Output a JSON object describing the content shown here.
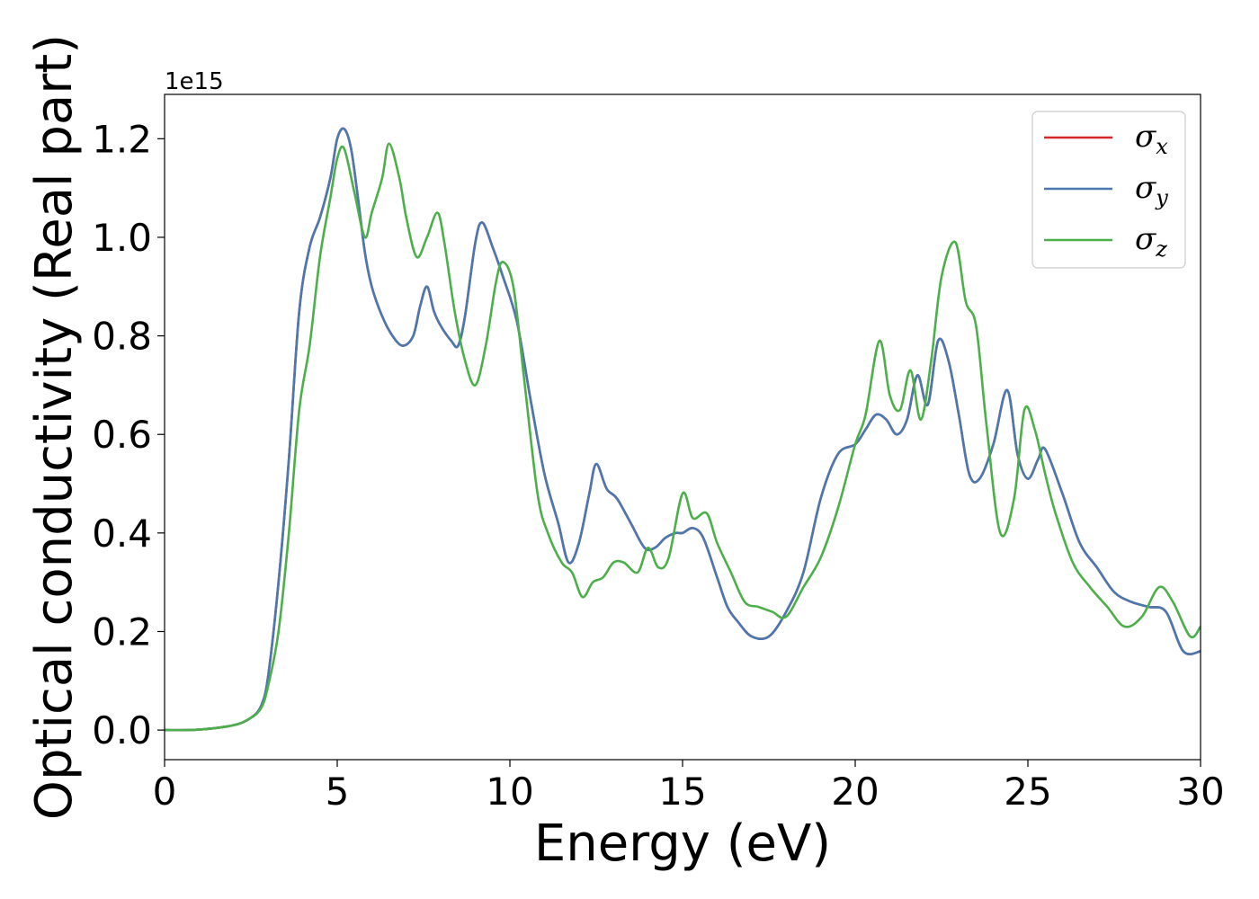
{
  "chart_data": {
    "type": "line",
    "xlabel": "Energy (eV)",
    "ylabel": "Optical conductivity (Real part)",
    "y_offset_label": "1e15",
    "xlim": [
      0,
      30
    ],
    "ylim": [
      -0.06,
      1.29
    ],
    "x_ticks": [
      0,
      5,
      10,
      15,
      20,
      25,
      30
    ],
    "x_tick_labels": [
      "0",
      "5",
      "10",
      "15",
      "20",
      "25",
      "30"
    ],
    "y_ticks": [
      0.0,
      0.2,
      0.4,
      0.6,
      0.8,
      1.0,
      1.2
    ],
    "y_tick_labels": [
      "0.0",
      "0.2",
      "0.4",
      "0.6",
      "0.8",
      "1.0",
      "1.2"
    ],
    "grid": false,
    "legend_position": "top-right",
    "series": [
      {
        "name": "σx",
        "symbol": "σ",
        "subscript": "x",
        "color": "#d62728",
        "x": [
          0,
          1,
          2,
          2.5,
          2.8,
          3.0,
          3.3,
          3.6,
          3.9,
          4.2,
          4.5,
          4.8,
          5.0,
          5.2,
          5.4,
          5.6,
          5.8,
          6.0,
          6.3,
          6.6,
          6.9,
          7.2,
          7.4,
          7.6,
          7.8,
          8.0,
          8.3,
          8.5,
          8.7,
          9.0,
          9.2,
          9.5,
          9.8,
          10.2,
          10.6,
          11.0,
          11.4,
          11.7,
          12.0,
          12.3,
          12.5,
          12.8,
          13.1,
          13.5,
          13.9,
          14.2,
          14.5,
          14.8,
          15.0,
          15.3,
          15.6,
          16.0,
          16.3,
          16.6,
          17.0,
          17.5,
          18.0,
          18.5,
          19.0,
          19.5,
          20.0,
          20.3,
          20.6,
          20.9,
          21.2,
          21.5,
          21.8,
          22.1,
          22.4,
          22.7,
          23.0,
          23.3,
          23.6,
          24.0,
          24.4,
          24.7,
          25.0,
          25.3,
          25.5,
          26.0,
          26.5,
          27.0,
          27.5,
          28.0,
          28.5,
          29.0,
          29.5,
          30.0
        ],
        "values": [
          0,
          0.001,
          0.01,
          0.025,
          0.05,
          0.11,
          0.3,
          0.55,
          0.85,
          0.98,
          1.04,
          1.12,
          1.2,
          1.22,
          1.18,
          1.08,
          0.97,
          0.9,
          0.84,
          0.8,
          0.78,
          0.8,
          0.86,
          0.9,
          0.85,
          0.82,
          0.79,
          0.78,
          0.84,
          0.99,
          1.03,
          0.98,
          0.92,
          0.83,
          0.67,
          0.52,
          0.42,
          0.34,
          0.38,
          0.48,
          0.54,
          0.49,
          0.47,
          0.42,
          0.37,
          0.37,
          0.39,
          0.4,
          0.4,
          0.41,
          0.39,
          0.31,
          0.25,
          0.22,
          0.19,
          0.19,
          0.24,
          0.32,
          0.47,
          0.56,
          0.58,
          0.61,
          0.64,
          0.63,
          0.6,
          0.63,
          0.72,
          0.66,
          0.79,
          0.75,
          0.64,
          0.52,
          0.51,
          0.58,
          0.69,
          0.56,
          0.51,
          0.55,
          0.57,
          0.48,
          0.38,
          0.33,
          0.28,
          0.26,
          0.25,
          0.24,
          0.16,
          0.16
        ]
      },
      {
        "name": "σy",
        "symbol": "σ",
        "subscript": "y",
        "color": "#4a78b0",
        "x": [
          0,
          1,
          2,
          2.5,
          2.8,
          3.0,
          3.3,
          3.6,
          3.9,
          4.2,
          4.5,
          4.8,
          5.0,
          5.2,
          5.4,
          5.6,
          5.8,
          6.0,
          6.3,
          6.6,
          6.9,
          7.2,
          7.4,
          7.6,
          7.8,
          8.0,
          8.3,
          8.5,
          8.7,
          9.0,
          9.2,
          9.5,
          9.8,
          10.2,
          10.6,
          11.0,
          11.4,
          11.7,
          12.0,
          12.3,
          12.5,
          12.8,
          13.1,
          13.5,
          13.9,
          14.2,
          14.5,
          14.8,
          15.0,
          15.3,
          15.6,
          16.0,
          16.3,
          16.6,
          17.0,
          17.5,
          18.0,
          18.5,
          19.0,
          19.5,
          20.0,
          20.3,
          20.6,
          20.9,
          21.2,
          21.5,
          21.8,
          22.1,
          22.4,
          22.7,
          23.0,
          23.3,
          23.6,
          24.0,
          24.4,
          24.7,
          25.0,
          25.3,
          25.5,
          26.0,
          26.5,
          27.0,
          27.5,
          28.0,
          28.5,
          29.0,
          29.5,
          30.0
        ],
        "values": [
          0,
          0.001,
          0.01,
          0.025,
          0.05,
          0.11,
          0.3,
          0.55,
          0.85,
          0.98,
          1.04,
          1.12,
          1.2,
          1.22,
          1.18,
          1.08,
          0.97,
          0.9,
          0.84,
          0.8,
          0.78,
          0.8,
          0.86,
          0.9,
          0.85,
          0.82,
          0.79,
          0.78,
          0.84,
          0.99,
          1.03,
          0.98,
          0.92,
          0.83,
          0.67,
          0.52,
          0.42,
          0.34,
          0.38,
          0.48,
          0.54,
          0.49,
          0.47,
          0.42,
          0.37,
          0.37,
          0.39,
          0.4,
          0.4,
          0.41,
          0.39,
          0.31,
          0.25,
          0.22,
          0.19,
          0.19,
          0.24,
          0.32,
          0.47,
          0.56,
          0.58,
          0.61,
          0.64,
          0.63,
          0.6,
          0.63,
          0.72,
          0.66,
          0.79,
          0.75,
          0.64,
          0.52,
          0.51,
          0.58,
          0.69,
          0.56,
          0.51,
          0.55,
          0.57,
          0.48,
          0.38,
          0.33,
          0.28,
          0.26,
          0.25,
          0.24,
          0.16,
          0.16
        ]
      },
      {
        "name": "σz",
        "symbol": "σ",
        "subscript": "z",
        "color": "#4daf4a",
        "x": [
          0,
          1,
          2,
          2.5,
          2.8,
          3.0,
          3.3,
          3.6,
          3.9,
          4.2,
          4.5,
          4.8,
          5.0,
          5.2,
          5.5,
          5.8,
          6.0,
          6.3,
          6.5,
          6.8,
          7.0,
          7.3,
          7.6,
          7.9,
          8.1,
          8.4,
          8.7,
          9.0,
          9.3,
          9.6,
          9.8,
          10.1,
          10.4,
          10.8,
          11.1,
          11.5,
          11.8,
          12.1,
          12.4,
          12.7,
          13.0,
          13.3,
          13.7,
          14.0,
          14.3,
          14.6,
          15.0,
          15.3,
          15.7,
          16.0,
          16.4,
          16.8,
          17.2,
          17.6,
          18.0,
          18.5,
          19.0,
          19.5,
          20.0,
          20.3,
          20.7,
          21.0,
          21.3,
          21.6,
          21.9,
          22.2,
          22.5,
          22.9,
          23.2,
          23.5,
          23.8,
          24.2,
          24.6,
          24.9,
          25.2,
          25.5,
          25.8,
          26.3,
          26.8,
          27.3,
          27.8,
          28.3,
          28.8,
          29.2,
          29.7,
          30.0
        ],
        "values": [
          0,
          0.001,
          0.01,
          0.025,
          0.045,
          0.09,
          0.2,
          0.4,
          0.65,
          0.78,
          0.96,
          1.08,
          1.16,
          1.18,
          1.09,
          1.0,
          1.05,
          1.12,
          1.19,
          1.12,
          1.04,
          0.96,
          1.0,
          1.05,
          0.99,
          0.85,
          0.75,
          0.7,
          0.78,
          0.91,
          0.95,
          0.9,
          0.72,
          0.48,
          0.4,
          0.34,
          0.32,
          0.27,
          0.3,
          0.31,
          0.34,
          0.34,
          0.32,
          0.37,
          0.33,
          0.35,
          0.48,
          0.43,
          0.44,
          0.38,
          0.32,
          0.26,
          0.25,
          0.24,
          0.23,
          0.29,
          0.35,
          0.45,
          0.58,
          0.64,
          0.79,
          0.68,
          0.65,
          0.73,
          0.63,
          0.75,
          0.92,
          0.99,
          0.87,
          0.82,
          0.62,
          0.4,
          0.47,
          0.65,
          0.61,
          0.52,
          0.44,
          0.34,
          0.29,
          0.25,
          0.21,
          0.23,
          0.29,
          0.26,
          0.19,
          0.21
        ]
      }
    ]
  }
}
